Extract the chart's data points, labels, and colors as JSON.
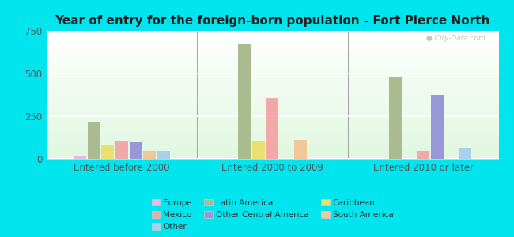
{
  "title": "Year of entry for the foreign-born population - Fort Pierce North",
  "groups": [
    "Entered before 2000",
    "Entered 2000 to 2009",
    "Entered 2010 or later"
  ],
  "categories": [
    "Europe",
    "Latin America",
    "Caribbean",
    "Mexico",
    "Other Central America",
    "South America",
    "Other"
  ],
  "values": {
    "Entered before 2000": [
      15,
      215,
      80,
      105,
      95,
      45,
      45
    ],
    "Entered 2000 to 2009": [
      0,
      670,
      105,
      355,
      0,
      110,
      0
    ],
    "Entered 2010 or later": [
      0,
      475,
      0,
      45,
      375,
      0,
      65
    ]
  },
  "colors": {
    "Europe": "#e8b8e8",
    "Latin America": "#aabb90",
    "Caribbean": "#e8e070",
    "Mexico": "#f0a8a8",
    "Other Central America": "#9898d8",
    "South America": "#f0c898",
    "Other": "#a8d0e8"
  },
  "ylim": [
    0,
    750
  ],
  "yticks": [
    0,
    250,
    500,
    750
  ],
  "outer_bg": "#00e5ee",
  "plot_bg": "#e8f8f0",
  "watermark": "City-Data.com",
  "title_fontsize": 11,
  "axis_fontsize": 8.5,
  "legend_fontsize": 7.5
}
